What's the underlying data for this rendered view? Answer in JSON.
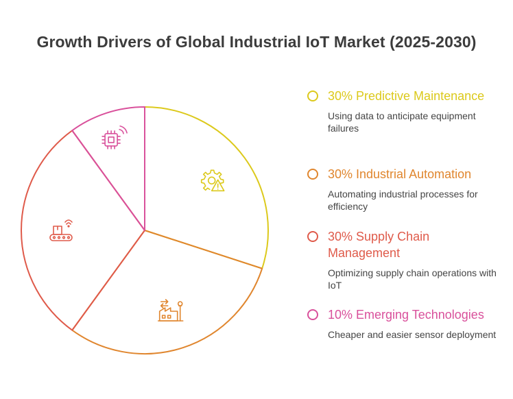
{
  "title": "Growth Drivers of Global Industrial IoT Market (2025-2030)",
  "chart_data": {
    "type": "pie",
    "title": "Growth Drivers of Global Industrial IoT Market (2025-2030)",
    "slices": [
      {
        "name": "Predictive Maintenance",
        "value": 30,
        "label": "30% Predictive Maintenance",
        "description": "Using data to anticipate equipment failures",
        "color": "#dcc91b",
        "icon": "gear-warning-icon"
      },
      {
        "name": "Industrial Automation",
        "value": 30,
        "label": "30% Industrial Automation",
        "description": "Automating industrial processes for efficiency",
        "color": "#e0862e",
        "icon": "factory-icon"
      },
      {
        "name": "Supply Chain Management",
        "value": 30,
        "label": "30% Supply Chain Management",
        "description": "Optimizing supply chain operations with IoT",
        "color": "#df5a4a",
        "icon": "conveyor-box-icon"
      },
      {
        "name": "Emerging Technologies",
        "value": 10,
        "label": "10% Emerging Technologies",
        "description": "Cheaper and easier sensor deployment",
        "color": "#d9509b",
        "icon": "wireless-chip-icon"
      }
    ],
    "start_direction": "top",
    "direction": "clockwise",
    "legend_placement": "right"
  }
}
